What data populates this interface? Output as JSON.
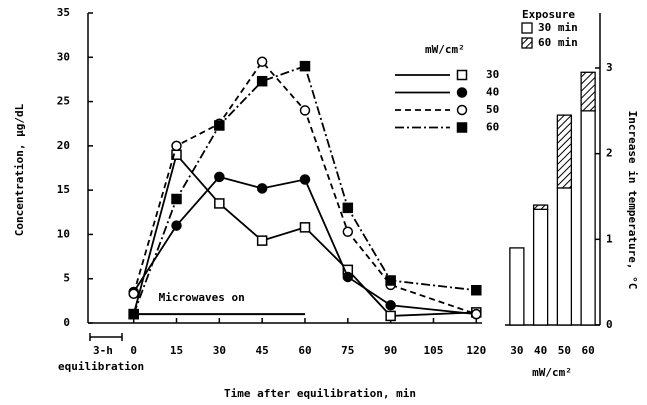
{
  "chart_data": [
    {
      "type": "line",
      "xlabel": "Time after equilibration, min",
      "ylabel": "Concentration, µg/dL",
      "x": [
        0,
        15,
        30,
        45,
        60,
        75,
        90,
        120
      ],
      "xlim": [
        -16,
        122
      ],
      "xticks": [
        0,
        15,
        30,
        45,
        60,
        75,
        90,
        105,
        120
      ],
      "ylim": [
        0,
        35
      ],
      "yticks": [
        0,
        5,
        10,
        15,
        20,
        25,
        30,
        35
      ],
      "legend_title": "mW/cm²",
      "series": [
        {
          "name": "30",
          "color": "#000000",
          "style": "solid",
          "marker": "open-square",
          "values": [
            1,
            19,
            13.5,
            9.3,
            10.8,
            6,
            0.8,
            1.2
          ]
        },
        {
          "name": "40",
          "color": "#000000",
          "style": "solid",
          "marker": "filled-circle",
          "values": [
            3.5,
            11,
            16.5,
            15.2,
            16.2,
            5.2,
            2,
            1
          ]
        },
        {
          "name": "50",
          "color": "#000000",
          "style": "dashed",
          "marker": "open-circle",
          "values": [
            3.3,
            20,
            22.5,
            29.5,
            24,
            10.3,
            4.3,
            1
          ]
        },
        {
          "name": "60",
          "color": "#000000",
          "style": "dashdot",
          "marker": "filled-square",
          "values": [
            1,
            14,
            22.3,
            27.3,
            29,
            13,
            4.8,
            3.7
          ]
        }
      ],
      "annotations": [
        {
          "text": "Microwaves on",
          "x": [
            0,
            60
          ],
          "y": 1
        }
      ],
      "equilibration_label": [
        "3-h",
        "equilibration"
      ]
    },
    {
      "type": "bar",
      "xlabel": "mW/cm²",
      "ylabel": "Increase in temperature, °C",
      "categories": [
        "30",
        "40",
        "50",
        "60"
      ],
      "ylim": [
        0,
        3
      ],
      "yticks": [
        0,
        1,
        2,
        3
      ],
      "legend_title": "Exposure",
      "series": [
        {
          "name": "30 min",
          "color": "#ffffff",
          "pattern": "none",
          "values": [
            0.9,
            1.35,
            1.6,
            2.5
          ]
        },
        {
          "name": "60 min",
          "color": "#ffffff",
          "pattern": "hatch",
          "values": [
            null,
            0.05,
            0.85,
            0.45
          ]
        }
      ]
    }
  ]
}
